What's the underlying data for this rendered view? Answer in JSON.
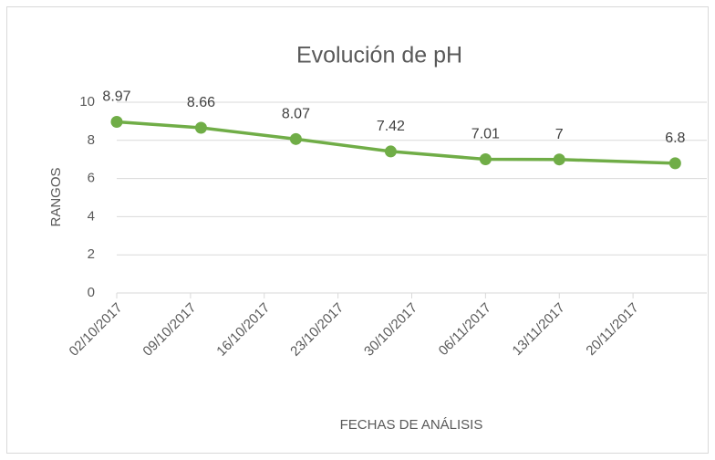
{
  "chart_data": {
    "type": "line",
    "title": "Evolución de pH",
    "x_label": "FECHAS DE ANÁLISIS",
    "y_label": "RANGOS",
    "x": [
      "2017-10-02",
      "2017-10-10",
      "2017-10-19",
      "2017-10-28",
      "2017-11-06",
      "2017-11-13",
      "2017-11-24"
    ],
    "series": [
      {
        "name": "pH",
        "color": "#70ad47",
        "values": [
          8.97,
          8.66,
          8.07,
          7.42,
          7.01,
          7,
          6.8
        ]
      }
    ],
    "xlim": [
      "2017-10-02",
      "2017-11-27"
    ],
    "xticks": [
      {
        "value": "2017-10-02",
        "label": "02/10/2017"
      },
      {
        "value": "2017-10-09",
        "label": "09/10/2017"
      },
      {
        "value": "2017-10-16",
        "label": "16/10/2017"
      },
      {
        "value": "2017-10-23",
        "label": "23/10/2017"
      },
      {
        "value": "2017-10-30",
        "label": "30/10/2017"
      },
      {
        "value": "2017-11-06",
        "label": "06/11/2017"
      },
      {
        "value": "2017-11-13",
        "label": "13/11/2017"
      },
      {
        "value": "2017-11-20",
        "label": "20/11/2017"
      }
    ],
    "ylim": [
      0,
      10
    ],
    "yticks": [
      0,
      2,
      4,
      6,
      8,
      10
    ],
    "grid": true
  }
}
